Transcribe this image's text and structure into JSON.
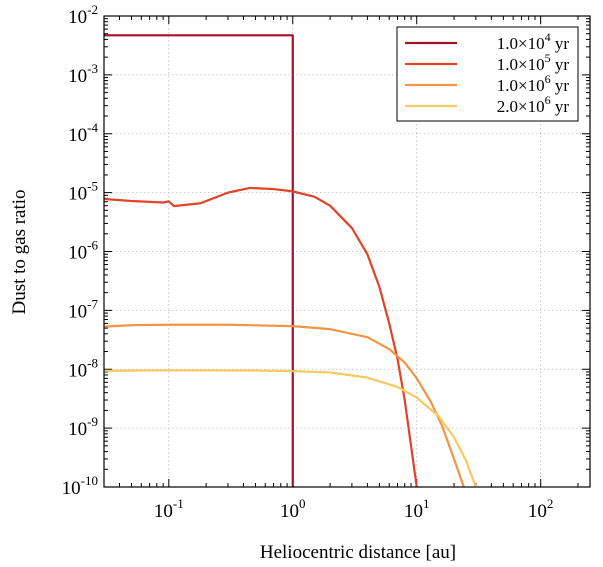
{
  "chart_data": {
    "type": "line",
    "xlabel": "Heliocentric distance [au]",
    "ylabel": "Dust to gas ratio",
    "xscale": "log",
    "yscale": "log",
    "xlim": [
      0.03,
      250
    ],
    "ylim": [
      1e-10,
      0.01
    ],
    "grid": true,
    "legend_position": "top-right",
    "x_tick_labels": [
      {
        "base": "10",
        "exp": "-1",
        "value": 0.1
      },
      {
        "base": "10",
        "exp": "0",
        "value": 1
      },
      {
        "base": "10",
        "exp": "1",
        "value": 10
      },
      {
        "base": "10",
        "exp": "2",
        "value": 100
      }
    ],
    "y_tick_labels": [
      {
        "base": "10",
        "exp": "-2",
        "value": 0.01
      },
      {
        "base": "10",
        "exp": "-3",
        "value": 0.001
      },
      {
        "base": "10",
        "exp": "-4",
        "value": 0.0001
      },
      {
        "base": "10",
        "exp": "-5",
        "value": 1e-05
      },
      {
        "base": "10",
        "exp": "-6",
        "value": 1e-06
      },
      {
        "base": "10",
        "exp": "-7",
        "value": 1e-07
      },
      {
        "base": "10",
        "exp": "-8",
        "value": 1e-08
      },
      {
        "base": "10",
        "exp": "-9",
        "value": 1e-09
      },
      {
        "base": "10",
        "exp": "-10",
        "value": 1e-10
      }
    ],
    "series": [
      {
        "name": "1.0×10^4 yr",
        "label_parts": {
          "mantissa": "1.0×10",
          "exp": "4",
          "unit": " yr"
        },
        "color": "#a3102e",
        "points": [
          [
            0.03,
            0.0047
          ],
          [
            1.0,
            0.0047
          ],
          [
            1.0,
            1e-10
          ]
        ]
      },
      {
        "name": "1.0×10^5 yr",
        "label_parts": {
          "mantissa": "1.0×10",
          "exp": "5",
          "unit": " yr"
        },
        "color": "#e0432a",
        "points": [
          [
            0.03,
            7.8e-06
          ],
          [
            0.05,
            7.2e-06
          ],
          [
            0.09,
            6.8e-06
          ],
          [
            0.1,
            7.1e-06
          ],
          [
            0.11,
            5.9e-06
          ],
          [
            0.18,
            6.6e-06
          ],
          [
            0.3,
            1e-05
          ],
          [
            0.45,
            1.2e-05
          ],
          [
            0.7,
            1.15e-05
          ],
          [
            1.0,
            1.05e-05
          ],
          [
            1.5,
            8.5e-06
          ],
          [
            2.0,
            6e-06
          ],
          [
            3.0,
            2.5e-06
          ],
          [
            4.0,
            9e-07
          ],
          [
            5.0,
            2.5e-07
          ],
          [
            6.0,
            6e-08
          ],
          [
            7.0,
            1.5e-08
          ],
          [
            8.0,
            3e-09
          ],
          [
            9.0,
            5e-10
          ],
          [
            10.0,
            1e-10
          ]
        ]
      },
      {
        "name": "1.0×10^6 yr",
        "label_parts": {
          "mantissa": "1.0×10",
          "exp": "6",
          "unit": " yr"
        },
        "color": "#f29443",
        "points": [
          [
            0.03,
            5.3e-08
          ],
          [
            0.05,
            5.6e-08
          ],
          [
            0.1,
            5.7e-08
          ],
          [
            0.3,
            5.7e-08
          ],
          [
            1.0,
            5.4e-08
          ],
          [
            2.0,
            4.8e-08
          ],
          [
            4.0,
            3.5e-08
          ],
          [
            6.0,
            2.2e-08
          ],
          [
            8.0,
            1.3e-08
          ],
          [
            10.0,
            7e-09
          ],
          [
            13.0,
            2.8e-09
          ],
          [
            16.0,
            1.1e-09
          ],
          [
            20.0,
            3e-10
          ],
          [
            24.0,
            1e-10
          ]
        ]
      },
      {
        "name": "2.0×10^6 yr",
        "label_parts": {
          "mantissa": "2.0×10",
          "exp": "6",
          "unit": " yr"
        },
        "color": "#f9c860",
        "points": [
          [
            0.03,
            9.4e-09
          ],
          [
            0.1,
            9.6e-09
          ],
          [
            0.5,
            9.5e-09
          ],
          [
            1.0,
            9.3e-09
          ],
          [
            2.0,
            8.8e-09
          ],
          [
            4.0,
            7.2e-09
          ],
          [
            7.0,
            5e-09
          ],
          [
            10.0,
            3.3e-09
          ],
          [
            15.0,
            1.6e-09
          ],
          [
            20.0,
            7e-10
          ],
          [
            25.0,
            2.8e-10
          ],
          [
            30.0,
            1e-10
          ]
        ]
      }
    ]
  }
}
